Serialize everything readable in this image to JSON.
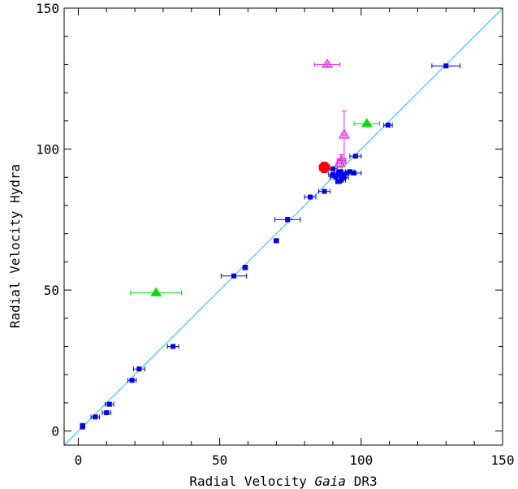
{
  "chart_data": {
    "type": "scatter",
    "xlabel_parts": [
      "Radial Velocity ",
      "Gaia",
      " DR3"
    ],
    "ylabel": "Radial Velocity Hydra",
    "xlim": [
      -5,
      150
    ],
    "ylim": [
      -5,
      150
    ],
    "x_ticks": [
      0,
      50,
      100,
      150
    ],
    "y_ticks": [
      0,
      50,
      100,
      150
    ],
    "x_tick_labels": [
      "0",
      "50",
      "100",
      "150"
    ],
    "y_tick_labels": [
      "0",
      "50",
      "100",
      "150"
    ],
    "grid": false,
    "one_to_one_line": {
      "color": "#00ccee",
      "from": [
        -5,
        -5
      ],
      "to": [
        150,
        150
      ]
    },
    "colors": {
      "blue": "#0000ee",
      "green": "#00dd00",
      "magenta": "#ee22ee",
      "red": "#ff0000"
    },
    "series": [
      {
        "marker": "square",
        "color": "#0000ee",
        "points": [
          {
            "x": 1.5,
            "y": 1.7,
            "xerr": 0.8,
            "yerr": 1.0
          },
          {
            "x": 6,
            "y": 5,
            "xerr": 1.5,
            "yerr": 0.6
          },
          {
            "x": 10,
            "y": 6.5,
            "xerr": 1.5,
            "yerr": 0.6
          },
          {
            "x": 11,
            "y": 9.5,
            "xerr": 1.5,
            "yerr": 0.6
          },
          {
            "x": 19,
            "y": 18,
            "xerr": 1.5,
            "yerr": 0.6
          },
          {
            "x": 21.5,
            "y": 22,
            "xerr": 2.0,
            "yerr": 0.6
          },
          {
            "x": 33.5,
            "y": 30,
            "xerr": 2.0,
            "yerr": 0.6
          },
          {
            "x": 55,
            "y": 55,
            "xerr": 4.5,
            "yerr": 0.6
          },
          {
            "x": 59,
            "y": 58,
            "xerr": 0.8,
            "yerr": 0.8
          },
          {
            "x": 70,
            "y": 67.5,
            "xerr": 0.8,
            "yerr": 0.6
          },
          {
            "x": 74,
            "y": 75,
            "xerr": 4.5,
            "yerr": 0.8
          },
          {
            "x": 82,
            "y": 83,
            "xerr": 2.0,
            "yerr": 0.6
          },
          {
            "x": 87,
            "y": 85,
            "xerr": 2.0,
            "yerr": 0.6
          },
          {
            "x": 90,
            "y": 93,
            "xerr": 1.5,
            "yerr": 0.6
          },
          {
            "x": 90,
            "y": 91,
            "xerr": 1.5,
            "yerr": 0.6
          },
          {
            "x": 91,
            "y": 90,
            "xerr": 2.0,
            "yerr": 0.6
          },
          {
            "x": 92,
            "y": 91.5,
            "xerr": 1.5,
            "yerr": 0.6
          },
          {
            "x": 93,
            "y": 89,
            "xerr": 1.5,
            "yerr": 0.6
          },
          {
            "x": 92.5,
            "y": 92,
            "xerr": 1.0,
            "yerr": 0.6
          },
          {
            "x": 93,
            "y": 91,
            "xerr": 1.0,
            "yerr": 1.5
          },
          {
            "x": 94,
            "y": 90,
            "xerr": 1.5,
            "yerr": 0.6
          },
          {
            "x": 95,
            "y": 91.5,
            "xerr": 1.5,
            "yerr": 0.6
          },
          {
            "x": 96,
            "y": 92,
            "xerr": 1.5,
            "yerr": 0.6
          },
          {
            "x": 97.5,
            "y": 91.5,
            "xerr": 2.5,
            "yerr": 0.6
          },
          {
            "x": 92,
            "y": 88.5,
            "xerr": 1.0,
            "yerr": 0.6
          },
          {
            "x": 98,
            "y": 97.5,
            "xerr": 2.0,
            "yerr": 0.6
          },
          {
            "x": 109.5,
            "y": 108.5,
            "xerr": 1.5,
            "yerr": 0.6
          },
          {
            "x": 130,
            "y": 129.5,
            "xerr": 5.0,
            "yerr": 0.6
          }
        ]
      },
      {
        "marker": "triangle-filled",
        "color": "#00dd00",
        "points": [
          {
            "x": 27.5,
            "y": 49,
            "xerr": 9.0,
            "yerr": 0.6
          },
          {
            "x": 102,
            "y": 109,
            "xerr": 4.5,
            "yerr": 0.6
          }
        ]
      },
      {
        "marker": "triangle-open",
        "color": "#ee22ee",
        "points": [
          {
            "x": 88,
            "y": 130,
            "xerr": 4.5,
            "yerr": 0.6
          },
          {
            "x": 94,
            "y": 105,
            "xerr": 0.6,
            "yerr": 8.5
          },
          {
            "x": 93,
            "y": 96,
            "xerr": 1.5,
            "yerr": 2.0
          },
          {
            "x": 92.5,
            "y": 95,
            "xerr": 1.0,
            "yerr": 1.5
          }
        ]
      },
      {
        "marker": "octagon-filled",
        "color": "#ff0000",
        "points": [
          {
            "x": 87,
            "y": 93.5,
            "xerr": 0,
            "yerr": 0
          }
        ]
      }
    ]
  }
}
